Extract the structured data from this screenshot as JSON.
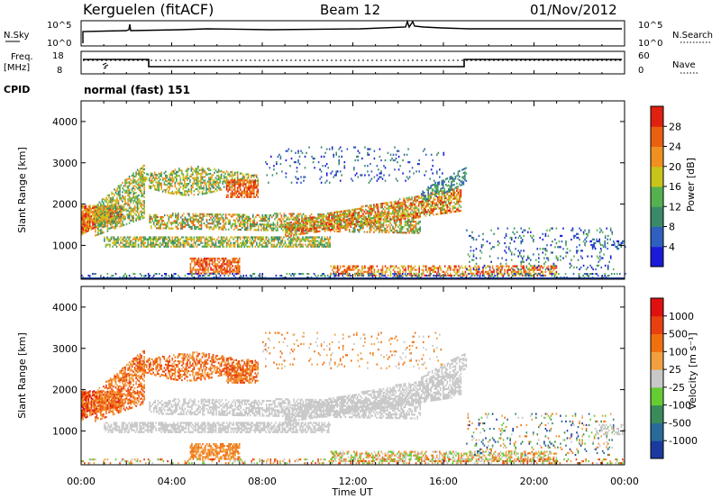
{
  "header": {
    "station": "Kerguelen (fitACF)",
    "beam": "Beam 12",
    "date": "01/Nov/2012"
  },
  "panels": {
    "nsky": {
      "left_label": "N.Sky",
      "right_label": "N.Search",
      "left_ticks": [
        "10^5",
        "10^0"
      ],
      "right_ticks": [
        "10^5",
        "10^0"
      ]
    },
    "freq": {
      "left_label_1": "Freq.",
      "left_label_2": "[MHz]",
      "left_ticks": [
        "18",
        "8"
      ],
      "right_label": "Nave",
      "right_ticks": [
        "60",
        "0"
      ]
    },
    "cpid": {
      "label": "CPID",
      "mode": "normal (fast) 151"
    }
  },
  "chart_data": [
    {
      "type": "heatmap",
      "name": "power",
      "ylabel": "Slant Range [km]",
      "yticks": [
        "1000",
        "2000",
        "3000",
        "4000"
      ],
      "ylim": [
        180,
        4500
      ],
      "xlabel": "Time UT",
      "xticks": [
        "00:00",
        "04:00",
        "08:00",
        "12:00",
        "16:00",
        "20:00",
        "00:00"
      ],
      "xlim_hours": [
        0,
        24
      ],
      "colorbar": {
        "label": "Power [dB]",
        "ticks": [
          "4",
          "8",
          "12",
          "16",
          "20",
          "24",
          "28"
        ],
        "colors": [
          "#1a1ad9",
          "#2f5fbf",
          "#3a8a6a",
          "#55b050",
          "#c8c41a",
          "#f09020",
          "#e86010",
          "#e02010"
        ]
      }
    },
    {
      "type": "heatmap",
      "name": "velocity",
      "ylabel": "Slant Range [km]",
      "yticks": [
        "1000",
        "2000",
        "3000",
        "4000"
      ],
      "ylim": [
        180,
        4500
      ],
      "xlabel": "Time UT",
      "xticks": [
        "00:00",
        "04:00",
        "08:00",
        "12:00",
        "16:00",
        "20:00",
        "00:00"
      ],
      "xlim_hours": [
        0,
        24
      ],
      "colorbar": {
        "label": "Velocity [m s⁻¹]",
        "ticks": [
          "1000",
          "500",
          "100",
          "25",
          "-25",
          "-100",
          "-500",
          "-1000"
        ],
        "colors": [
          "#1a3aa0",
          "#2a6a9a",
          "#3a8a5a",
          "#66cc33",
          "#c8c8c8",
          "#f0a040",
          "#f07010",
          "#e84010",
          "#e01010"
        ]
      }
    }
  ]
}
